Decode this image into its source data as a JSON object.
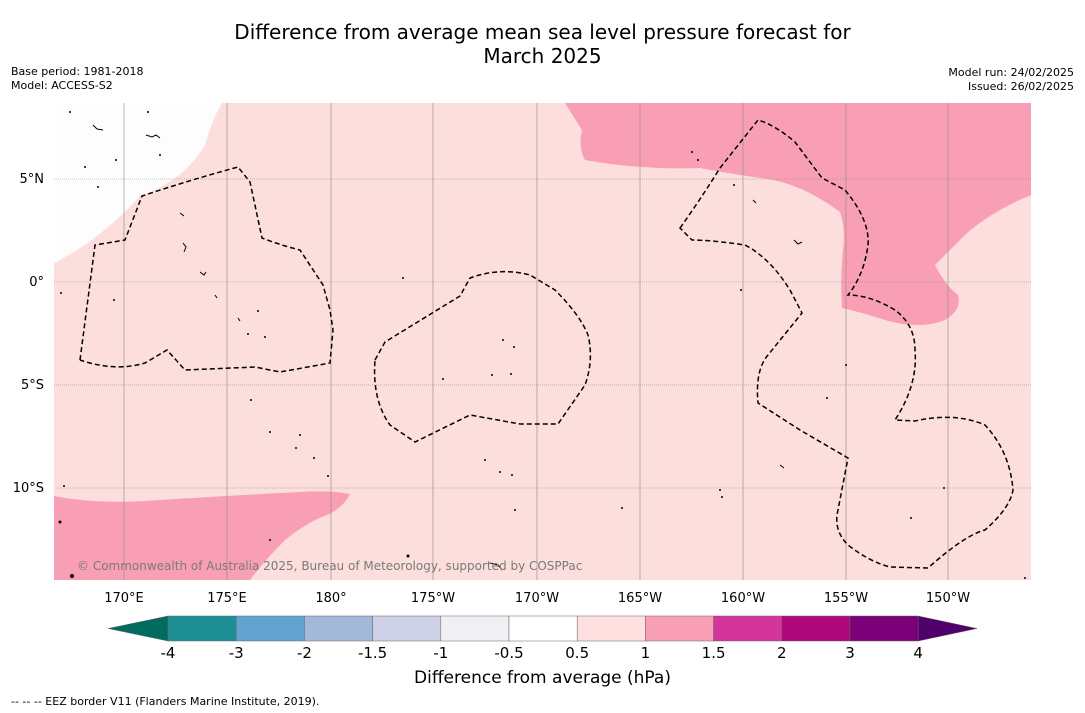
{
  "title_line1": "Difference from average mean sea level pressure forecast for",
  "title_line2": "March 2025",
  "base_period": "Base period: 1981-2018",
  "model": "Model: ACCESS-S2",
  "model_run": "Model run: 24/02/2025",
  "issued": "Issued: 26/02/2025",
  "lat_labels": [
    "5°N",
    "0°",
    "5°S",
    "10°S"
  ],
  "lon_labels": [
    "170°E",
    "175°E",
    "180°",
    "175°W",
    "170°W",
    "165°W",
    "160°W",
    "155°W",
    "150°W"
  ],
  "credit": "© Commonwealth of Australia 2025, Bureau of Meteorology, supported by COSPPac",
  "colorbar": {
    "title": "Difference from average (hPa)",
    "ticks": [
      "-4",
      "-3",
      "-2",
      "-1.5",
      "-1",
      "-0.5",
      "0.5",
      "1",
      "1.5",
      "2",
      "3",
      "4"
    ],
    "colors": [
      "#006b5e",
      "#1e8e95",
      "#62a4cf",
      "#a3b9da",
      "#cfd1e7",
      "#f0eff4",
      "#ffffff",
      "#fde0df",
      "#f99fb5",
      "#d4359b",
      "#ae0779",
      "#7a0177",
      "#4f006a"
    ]
  },
  "footer": "--  --  -- EEZ border V11 (Flanders Marine Institute, 2019)."
}
